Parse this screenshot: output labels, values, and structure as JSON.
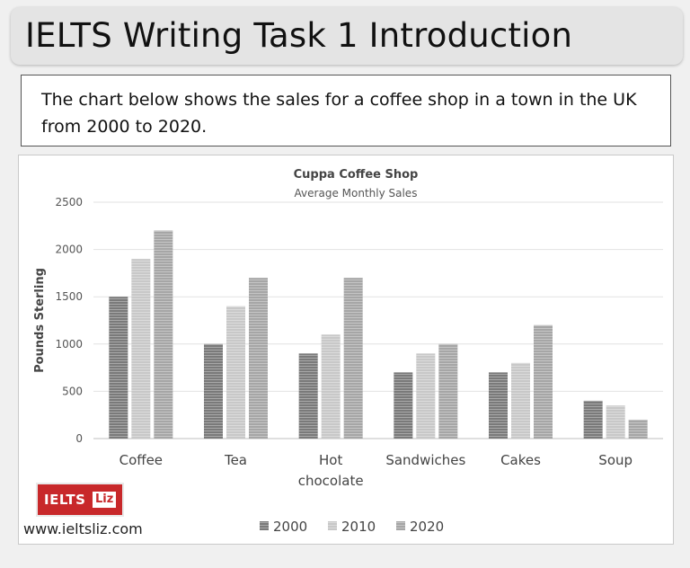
{
  "header": {
    "title": "IELTS Writing Task 1 Introduction"
  },
  "prompt": {
    "text": "The chart below shows the sales for a coffee shop in a town in the UK from 2000 to 2020."
  },
  "brand": {
    "main": "IELTS",
    "tag": "Liz",
    "website": "www.ieltsliz.com",
    "color": "#c8282a"
  },
  "chart_data": {
    "type": "bar",
    "title": "Cuppa Coffee Shop",
    "subtitle": "Average Monthly Sales",
    "xlabel": "",
    "ylabel": "Pounds Sterling",
    "categories": [
      [
        "Coffee"
      ],
      [
        "Tea"
      ],
      [
        "Hot",
        "chocolate"
      ],
      [
        "Sandwiches"
      ],
      [
        "Cakes"
      ],
      [
        "Soup"
      ]
    ],
    "series": [
      {
        "name": "2000",
        "color": "#7a7a7a",
        "values": [
          1500,
          1000,
          900,
          700,
          700,
          400
        ]
      },
      {
        "name": "2010",
        "color": "#c8c8c8",
        "values": [
          1900,
          1400,
          1100,
          900,
          800,
          350
        ]
      },
      {
        "name": "2020",
        "color": "#a6a6a6",
        "values": [
          2200,
          1700,
          1700,
          1000,
          1200,
          200
        ]
      }
    ],
    "ylim": [
      0,
      2500
    ],
    "yticks": [
      0,
      500,
      1000,
      1500,
      2000,
      2500
    ],
    "grid": true,
    "legend": "bottom"
  }
}
